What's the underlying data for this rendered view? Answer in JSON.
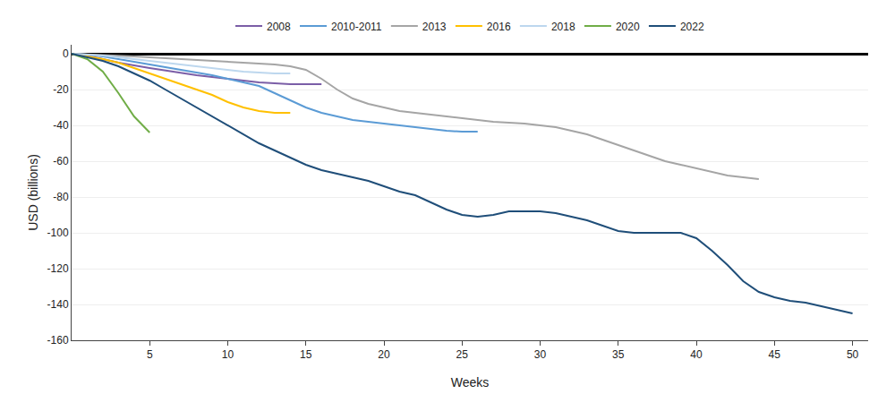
{
  "chart_data": {
    "type": "line",
    "xlabel": "Weeks",
    "ylabel": "USD (billions)",
    "xlim": [
      0,
      51
    ],
    "ylim": [
      -160,
      5
    ],
    "xticks": [
      5,
      10,
      15,
      20,
      25,
      30,
      35,
      40,
      45,
      50
    ],
    "yticks": [
      0,
      -20,
      -40,
      -60,
      -80,
      -100,
      -120,
      -140,
      -160
    ],
    "grid": true,
    "legend": "top",
    "series": [
      {
        "name": "2008",
        "color": "#7b5ea7",
        "x": [
          0,
          1,
          2,
          3,
          5,
          8,
          10,
          12,
          14,
          16
        ],
        "values": [
          0,
          -1,
          -3,
          -5,
          -8,
          -12,
          -14,
          -16,
          -17,
          -17
        ]
      },
      {
        "name": "2010-2011",
        "color": "#5b9bd5",
        "x": [
          0,
          1,
          2,
          3,
          4,
          5,
          6,
          7,
          8,
          9,
          10,
          11,
          12,
          13,
          14,
          15,
          16,
          17,
          18,
          19,
          20,
          21,
          22,
          23,
          24,
          25,
          26
        ],
        "values": [
          0,
          -0.5,
          -1.5,
          -3,
          -4.5,
          -6,
          -7.5,
          -9,
          -10.5,
          -12,
          -14,
          -16,
          -18,
          -22,
          -26,
          -30,
          -33,
          -35,
          -37,
          -38,
          -39,
          -40,
          -41,
          -42,
          -43,
          -43.5,
          -43.5
        ]
      },
      {
        "name": "2013",
        "color": "#a5a5a5",
        "x": [
          0,
          1,
          2,
          3,
          4,
          5,
          6,
          7,
          8,
          9,
          10,
          11,
          12,
          13,
          14,
          15,
          16,
          17,
          18,
          19,
          20,
          21,
          22,
          23,
          24,
          25,
          26,
          27,
          28,
          29,
          30,
          31,
          32,
          33,
          34,
          35,
          36,
          37,
          38,
          39,
          40,
          41,
          42,
          43,
          44
        ],
        "values": [
          0,
          -0.3,
          -0.6,
          -1,
          -1.5,
          -2,
          -2.5,
          -3,
          -3.5,
          -4,
          -4.5,
          -5,
          -5.5,
          -6,
          -7,
          -9,
          -14,
          -20,
          -25,
          -28,
          -30,
          -32,
          -33,
          -34,
          -35,
          -36,
          -37,
          -38,
          -38.5,
          -39,
          -40,
          -41,
          -43,
          -45,
          -48,
          -51,
          -54,
          -57,
          -60,
          -62,
          -64,
          -66,
          -68,
          -69,
          -70
        ]
      },
      {
        "name": "2016",
        "color": "#ffc000",
        "x": [
          0,
          1,
          2,
          3,
          4,
          5,
          6,
          7,
          8,
          9,
          10,
          11,
          12,
          13,
          14
        ],
        "values": [
          0,
          -1.5,
          -3,
          -5,
          -8,
          -11,
          -14,
          -17,
          -20,
          -23,
          -27,
          -30,
          -32,
          -33,
          -33
        ]
      },
      {
        "name": "2018",
        "color": "#bdd7ee",
        "x": [
          0,
          1,
          2,
          3,
          4,
          5,
          6,
          7,
          8,
          9,
          10,
          11,
          12,
          13,
          14
        ],
        "values": [
          0,
          -0.5,
          -1,
          -2,
          -3,
          -4,
          -5,
          -6,
          -7,
          -8,
          -9,
          -10,
          -10.5,
          -11,
          -11
        ]
      },
      {
        "name": "2020",
        "color": "#70ad47",
        "x": [
          0,
          1,
          2,
          3,
          4,
          5
        ],
        "values": [
          0,
          -3,
          -10,
          -22,
          -35,
          -44
        ]
      },
      {
        "name": "2022",
        "color": "#1f4e79",
        "x": [
          0,
          1,
          2,
          3,
          4,
          5,
          6,
          7,
          8,
          9,
          10,
          11,
          12,
          13,
          14,
          15,
          16,
          17,
          18,
          19,
          20,
          21,
          22,
          23,
          24,
          25,
          26,
          27,
          28,
          29,
          30,
          31,
          32,
          33,
          34,
          35,
          36,
          37,
          38,
          39,
          40,
          41,
          42,
          43,
          44,
          45,
          46,
          47,
          48,
          49,
          50
        ],
        "values": [
          0,
          -2,
          -4,
          -7,
          -11,
          -15,
          -20,
          -25,
          -30,
          -35,
          -40,
          -45,
          -50,
          -54,
          -58,
          -62,
          -65,
          -67,
          -69,
          -71,
          -74,
          -77,
          -79,
          -83,
          -87,
          -90,
          -91,
          -90,
          -88,
          -88,
          -88,
          -89,
          -91,
          -93,
          -96,
          -99,
          -100,
          -100,
          -100,
          -100,
          -103,
          -110,
          -118,
          -127,
          -133,
          -136,
          -138,
          -139,
          -141,
          -143,
          -145
        ]
      }
    ]
  }
}
